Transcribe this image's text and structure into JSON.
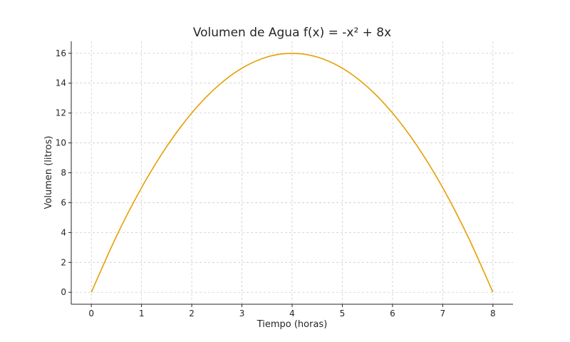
{
  "chart_data": {
    "type": "line",
    "title": "Volumen de Agua f(x) = -x² + 8x",
    "xlabel": "Tiempo (horas)",
    "ylabel": "Volumen (litros)",
    "xlim": [
      -0.4,
      8.4
    ],
    "ylim": [
      -0.8,
      16.8
    ],
    "xticks": [
      0,
      1,
      2,
      3,
      4,
      5,
      6,
      7,
      8
    ],
    "yticks": [
      0,
      2,
      4,
      6,
      8,
      10,
      12,
      14,
      16
    ],
    "grid": true,
    "series": [
      {
        "color": "#E69F00",
        "x": [
          0,
          0.5,
          1,
          1.5,
          2,
          2.5,
          3,
          3.5,
          4,
          4.5,
          5,
          5.5,
          6,
          6.5,
          7,
          7.5,
          8
        ],
        "y": [
          0,
          3.75,
          7,
          9.75,
          12,
          13.75,
          15,
          15.75,
          16,
          15.75,
          15,
          13.75,
          12,
          9.75,
          7,
          3.75,
          0
        ]
      }
    ]
  }
}
